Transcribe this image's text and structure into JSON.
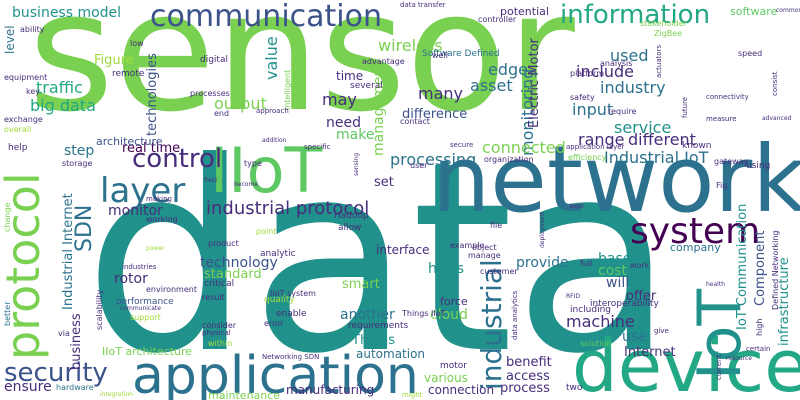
{
  "palette": {
    "lime": "#7ad151",
    "green": "#5ec962",
    "teal": "#21918c",
    "tealblue": "#2c728e",
    "blue": "#3b528b",
    "indigo": "#472d7b",
    "purple": "#440154",
    "seagreen": "#22a884",
    "yellowgreen": "#a0da39",
    "yellow": "#bddf26"
  },
  "words": [
    {
      "id": "w-sensor",
      "text": "sensor"
    },
    {
      "id": "w-data",
      "text": "data"
    },
    {
      "id": "w-network",
      "text": "network"
    },
    {
      "id": "w-device",
      "text": "device"
    },
    {
      "id": "w-application",
      "text": "application"
    },
    {
      "id": "w-iiot",
      "text": "IIoT"
    },
    {
      "id": "w-iot",
      "text": "IoT"
    },
    {
      "id": "w-protocol",
      "text": "protocol"
    },
    {
      "id": "w-communication",
      "text": "communication"
    },
    {
      "id": "w-information",
      "text": "information"
    },
    {
      "id": "w-system",
      "text": "system"
    },
    {
      "id": "w-layer",
      "text": "layer"
    },
    {
      "id": "w-control",
      "text": "control"
    },
    {
      "id": "w-security",
      "text": "security"
    },
    {
      "id": "w-industrial",
      "text": "industrial"
    },
    {
      "id": "w-industrial-protocol",
      "text": "industrial protocol"
    },
    {
      "id": "w-sdn",
      "text": "SDN"
    },
    {
      "id": "w-industrial-iot",
      "text": "Industrial IoT"
    },
    {
      "id": "w-big-data",
      "text": "big data"
    },
    {
      "id": "w-traffic",
      "text": "traffic"
    },
    {
      "id": "w-business-model",
      "text": "business model"
    },
    {
      "id": "w-wireless",
      "text": "wireless"
    },
    {
      "id": "w-edge",
      "text": "edge"
    },
    {
      "id": "w-value",
      "text": "value"
    },
    {
      "id": "w-output",
      "text": "output"
    },
    {
      "id": "w-monitoring",
      "text": "monitoring"
    },
    {
      "id": "w-management",
      "text": "management"
    },
    {
      "id": "w-processing",
      "text": "processing"
    },
    {
      "id": "w-connected",
      "text": "connected"
    },
    {
      "id": "w-technology",
      "text": "technology"
    },
    {
      "id": "w-machine",
      "text": "machine"
    },
    {
      "id": "w-service",
      "text": "service"
    },
    {
      "id": "w-industry",
      "text": "industry"
    },
    {
      "id": "w-include",
      "text": "include"
    },
    {
      "id": "w-used",
      "text": "used"
    },
    {
      "id": "w-input",
      "text": "input"
    },
    {
      "id": "w-range",
      "text": "range"
    },
    {
      "id": "w-different",
      "text": "different"
    },
    {
      "id": "w-real-time",
      "text": "real time"
    },
    {
      "id": "w-monitor",
      "text": "monitor"
    },
    {
      "id": "w-many",
      "text": "many"
    },
    {
      "id": "w-asset",
      "text": "asset"
    },
    {
      "id": "w-may",
      "text": "may"
    },
    {
      "id": "w-need",
      "text": "need"
    },
    {
      "id": "w-make",
      "text": "make"
    },
    {
      "id": "w-difference",
      "text": "difference"
    },
    {
      "id": "w-technologies",
      "text": "technologies"
    },
    {
      "id": "w-figure",
      "text": "Figure"
    },
    {
      "id": "w-step",
      "text": "step"
    },
    {
      "id": "w-rotor",
      "text": "rotor"
    },
    {
      "id": "w-standard",
      "text": "standard"
    },
    {
      "id": "w-one",
      "text": "one"
    },
    {
      "id": "w-smart",
      "text": "smart"
    },
    {
      "id": "w-another",
      "text": "another"
    },
    {
      "id": "w-things",
      "text": "Things"
    },
    {
      "id": "w-https",
      "text": "https"
    },
    {
      "id": "w-provide",
      "text": "provide"
    },
    {
      "id": "w-cloud",
      "text": "cloud"
    },
    {
      "id": "w-based",
      "text": "based"
    },
    {
      "id": "w-cost",
      "text": "cost"
    },
    {
      "id": "w-will",
      "text": "will"
    },
    {
      "id": "w-offer",
      "text": "offer"
    },
    {
      "id": "w-benefit",
      "text": "benefit"
    },
    {
      "id": "w-access",
      "text": "access"
    },
    {
      "id": "w-process",
      "text": "process"
    },
    {
      "id": "w-internet",
      "text": "Internet"
    },
    {
      "id": "w-use",
      "text": "use"
    },
    {
      "id": "w-ensure",
      "text": "ensure"
    },
    {
      "id": "w-business",
      "text": "business"
    },
    {
      "id": "w-industrial-internet",
      "text": "Industrial Internet"
    },
    {
      "id": "w-electric-motor",
      "text": "Electric Motor"
    },
    {
      "id": "w-iot-communication",
      "text": "IoT Communication"
    },
    {
      "id": "w-component",
      "text": "Component"
    },
    {
      "id": "w-infrastructure",
      "text": "infrastructure"
    },
    {
      "id": "w-set",
      "text": "set"
    },
    {
      "id": "w-time",
      "text": "time"
    },
    {
      "id": "w-iiot-architecture",
      "text": "IIoT architecture"
    },
    {
      "id": "w-automation",
      "text": "automation"
    },
    {
      "id": "w-manufacturing",
      "text": "manufacturing"
    },
    {
      "id": "w-connection",
      "text": "connection"
    },
    {
      "id": "w-various",
      "text": "various"
    },
    {
      "id": "w-level",
      "text": "level"
    },
    {
      "id": "w-architecture",
      "text": "architecture"
    },
    {
      "id": "w-software",
      "text": "software"
    },
    {
      "id": "w-potential",
      "text": "potential"
    },
    {
      "id": "w-intelligent",
      "text": "intelligent"
    },
    {
      "id": "w-software-defined",
      "text": "Software Defined"
    },
    {
      "id": "w-zigbee",
      "text": "ZigBee"
    },
    {
      "id": "w-digital",
      "text": "digital"
    },
    {
      "id": "w-remote",
      "text": "remote"
    },
    {
      "id": "w-advantage",
      "text": "advantage"
    },
    {
      "id": "w-several",
      "text": "several"
    },
    {
      "id": "w-hadoop",
      "text": "Hadoop"
    },
    {
      "id": "w-allow",
      "text": "allow"
    },
    {
      "id": "w-interface",
      "text": "interface"
    },
    {
      "id": "w-company",
      "text": "company"
    },
    {
      "id": "w-motor",
      "text": "motor"
    },
    {
      "id": "w-maintenance",
      "text": "maintenance"
    },
    {
      "id": "w-environment",
      "text": "environment"
    },
    {
      "id": "w-performance",
      "text": "performance"
    },
    {
      "id": "w-support",
      "text": "support"
    },
    {
      "id": "w-critical",
      "text": "critical"
    },
    {
      "id": "w-quality",
      "text": "quality"
    },
    {
      "id": "w-enable",
      "text": "enable"
    },
    {
      "id": "w-force",
      "text": "force"
    },
    {
      "id": "w-requirements",
      "text": "requirements"
    },
    {
      "id": "w-iiot-system",
      "text": "IIoT system"
    },
    {
      "id": "w-things-iiot",
      "text": "Things IIoT"
    },
    {
      "id": "w-hardware",
      "text": "hardware"
    },
    {
      "id": "w-within",
      "text": "within"
    },
    {
      "id": "w-including",
      "text": "including"
    },
    {
      "id": "w-solution",
      "text": "solution"
    },
    {
      "id": "w-interoperability",
      "text": "interoperability"
    },
    {
      "id": "w-storage",
      "text": "storage"
    },
    {
      "id": "w-help",
      "text": "help"
    },
    {
      "id": "w-analysis",
      "text": "analysis"
    },
    {
      "id": "w-platform",
      "text": "platform"
    },
    {
      "id": "w-safety",
      "text": "safety"
    },
    {
      "id": "w-require",
      "text": "require"
    },
    {
      "id": "w-known",
      "text": "known"
    },
    {
      "id": "w-speed",
      "text": "speed"
    },
    {
      "id": "w-controller",
      "text": "controller"
    },
    {
      "id": "w-stakeholder",
      "text": "stakeholder"
    },
    {
      "id": "w-data-transfer",
      "text": "data transfer"
    },
    {
      "id": "w-efficiency",
      "text": "efficiency"
    },
    {
      "id": "w-manage",
      "text": "manage"
    },
    {
      "id": "w-customer",
      "text": "customer"
    },
    {
      "id": "w-product",
      "text": "product"
    },
    {
      "id": "w-working",
      "text": "working"
    },
    {
      "id": "w-analytic",
      "text": "analytic"
    },
    {
      "id": "w-scalability",
      "text": "scalability"
    },
    {
      "id": "w-equipment",
      "text": "equipment"
    },
    {
      "id": "w-exchange",
      "text": "exchange"
    },
    {
      "id": "w-overall",
      "text": "overall"
    },
    {
      "id": "w-key",
      "text": "key"
    },
    {
      "id": "w-ability",
      "text": "ability"
    },
    {
      "id": "w-low",
      "text": "low"
    },
    {
      "id": "w-processes",
      "text": "processes"
    },
    {
      "id": "w-end",
      "text": "end"
    },
    {
      "id": "w-approach",
      "text": "approach"
    },
    {
      "id": "w-contact",
      "text": "contact"
    },
    {
      "id": "w-well",
      "text": "well"
    },
    {
      "id": "w-file",
      "text": "file"
    },
    {
      "id": "w-organization",
      "text": "organization"
    },
    {
      "id": "w-gateway",
      "text": "gateway"
    },
    {
      "id": "w-using",
      "text": "using"
    },
    {
      "id": "w-fig",
      "text": "Fig"
    },
    {
      "id": "w-example",
      "text": "example"
    },
    {
      "id": "w-object",
      "text": "object"
    },
    {
      "id": "w-full",
      "text": "full"
    },
    {
      "id": "w-work",
      "text": "work"
    },
    {
      "id": "w-result",
      "text": "result"
    },
    {
      "id": "w-error",
      "text": "error"
    },
    {
      "id": "w-consider",
      "text": "consider"
    },
    {
      "id": "w-physical",
      "text": "physical"
    },
    {
      "id": "w-two",
      "text": "two"
    },
    {
      "id": "w-better",
      "text": "better"
    },
    {
      "id": "w-via",
      "text": "via"
    },
    {
      "id": "w-change",
      "text": "change"
    },
    {
      "id": "w-might",
      "text": "might"
    },
    {
      "id": "w-integration",
      "text": "integration"
    },
    {
      "id": "w-networking-sdn",
      "text": "Networking SDN"
    },
    {
      "id": "w-data-analytics",
      "text": "data analytics"
    },
    {
      "id": "w-application-layer",
      "text": "application layer"
    },
    {
      "id": "w-connectivity",
      "text": "connectivity"
    },
    {
      "id": "w-measure",
      "text": "measure"
    },
    {
      "id": "w-consist",
      "text": "consist"
    },
    {
      "id": "w-advanced",
      "text": "advanced"
    },
    {
      "id": "w-actuators",
      "text": "actuators"
    },
    {
      "id": "w-future",
      "text": "future"
    },
    {
      "id": "w-defined-networking",
      "text": "Defined Networking"
    },
    {
      "id": "w-high",
      "text": "high"
    },
    {
      "id": "w-certain",
      "text": "certain"
    },
    {
      "id": "w-current",
      "text": "current"
    },
    {
      "id": "w-health",
      "text": "health"
    },
    {
      "id": "w-resource",
      "text": "resource"
    },
    {
      "id": "w-type",
      "text": "type"
    },
    {
      "id": "w-field",
      "text": "field"
    },
    {
      "id": "w-become",
      "text": "become"
    },
    {
      "id": "w-specific",
      "text": "specific"
    },
    {
      "id": "w-making",
      "text": "making"
    },
    {
      "id": "w-point",
      "text": "point"
    },
    {
      "id": "w-power",
      "text": "power"
    },
    {
      "id": "w-communicate",
      "text": "communicate"
    },
    {
      "id": "w-industries",
      "text": "industries"
    },
    {
      "id": "w-sensing",
      "text": "sensing"
    },
    {
      "id": "w-secure",
      "text": "secure"
    },
    {
      "id": "w-addition",
      "text": "addition"
    },
    {
      "id": "w-user",
      "text": "user"
    },
    {
      "id": "w-rfid",
      "text": "RFID"
    },
    {
      "id": "w-deployment",
      "text": "deployment"
    },
    {
      "id": "w-exist",
      "text": "exist"
    },
    {
      "id": "w-give",
      "text": "give"
    },
    {
      "id": "w-common",
      "text": "common"
    }
  ]
}
